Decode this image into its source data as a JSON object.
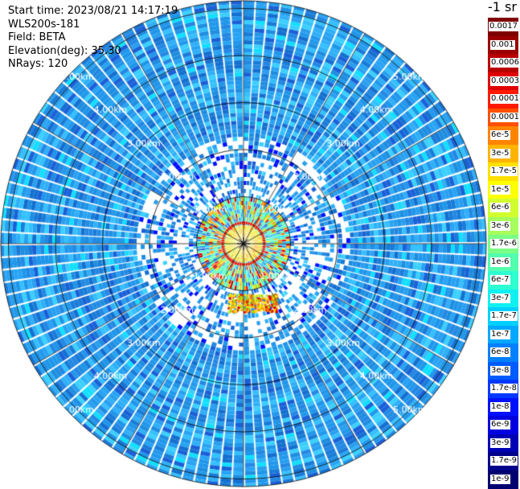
{
  "header": {
    "start_time": "Start time: 2023/08/21 14:17:19",
    "instrument": "WLS200s-181",
    "field": "Field: BETA",
    "elevation": "Elevation(deg): 35.30",
    "nrays": "NRays: 120"
  },
  "colorbar": {
    "unit": "-1 sr",
    "segments": [
      {
        "label": "0.0017",
        "color": "#800000"
      },
      {
        "label": "0.001",
        "color": "#9a0000"
      },
      {
        "label": "0.0006",
        "color": "#b80000"
      },
      {
        "label": "0.0003",
        "color": "#e00000"
      },
      {
        "label": "0.00017",
        "color": "#ff1a00"
      },
      {
        "label": "0.0001",
        "color": "#ff5000"
      },
      {
        "label": "6e-5",
        "color": "#ff8400"
      },
      {
        "label": "3e-5",
        "color": "#ffb400"
      },
      {
        "label": "1.7e-5",
        "color": "#ffe000"
      },
      {
        "label": "1e-5",
        "color": "#fbff00"
      },
      {
        "label": "6e-6",
        "color": "#d2ff2e"
      },
      {
        "label": "3e-6",
        "color": "#a6ff5a"
      },
      {
        "label": "1.7e-6",
        "color": "#7aff86"
      },
      {
        "label": "1e-6",
        "color": "#52ffae"
      },
      {
        "label": "6e-7",
        "color": "#2effd2"
      },
      {
        "label": "3e-7",
        "color": "#10f0f0"
      },
      {
        "label": "1.7e-7",
        "color": "#00d0ff"
      },
      {
        "label": "1e-7",
        "color": "#00a8ff"
      },
      {
        "label": "6e-8",
        "color": "#0080ff"
      },
      {
        "label": "3e-8",
        "color": "#005cff"
      },
      {
        "label": "1.7e-8",
        "color": "#0038ff"
      },
      {
        "label": "1e-8",
        "color": "#0010ff"
      },
      {
        "label": "6e-9",
        "color": "#0000e0"
      },
      {
        "label": "3e-9",
        "color": "#0000b4"
      },
      {
        "label": "1.7e-9",
        "color": "#00008a"
      },
      {
        "label": "1e-9",
        "color": "#000070"
      }
    ]
  },
  "range_rings": [
    {
      "label": "1.00km"
    },
    {
      "label": "2.00km"
    },
    {
      "label": "3.00km"
    },
    {
      "label": "4.00km"
    },
    {
      "label": "5.00km"
    }
  ],
  "scan": {
    "n_rays": 120,
    "max_range_km": 5.3
  }
}
